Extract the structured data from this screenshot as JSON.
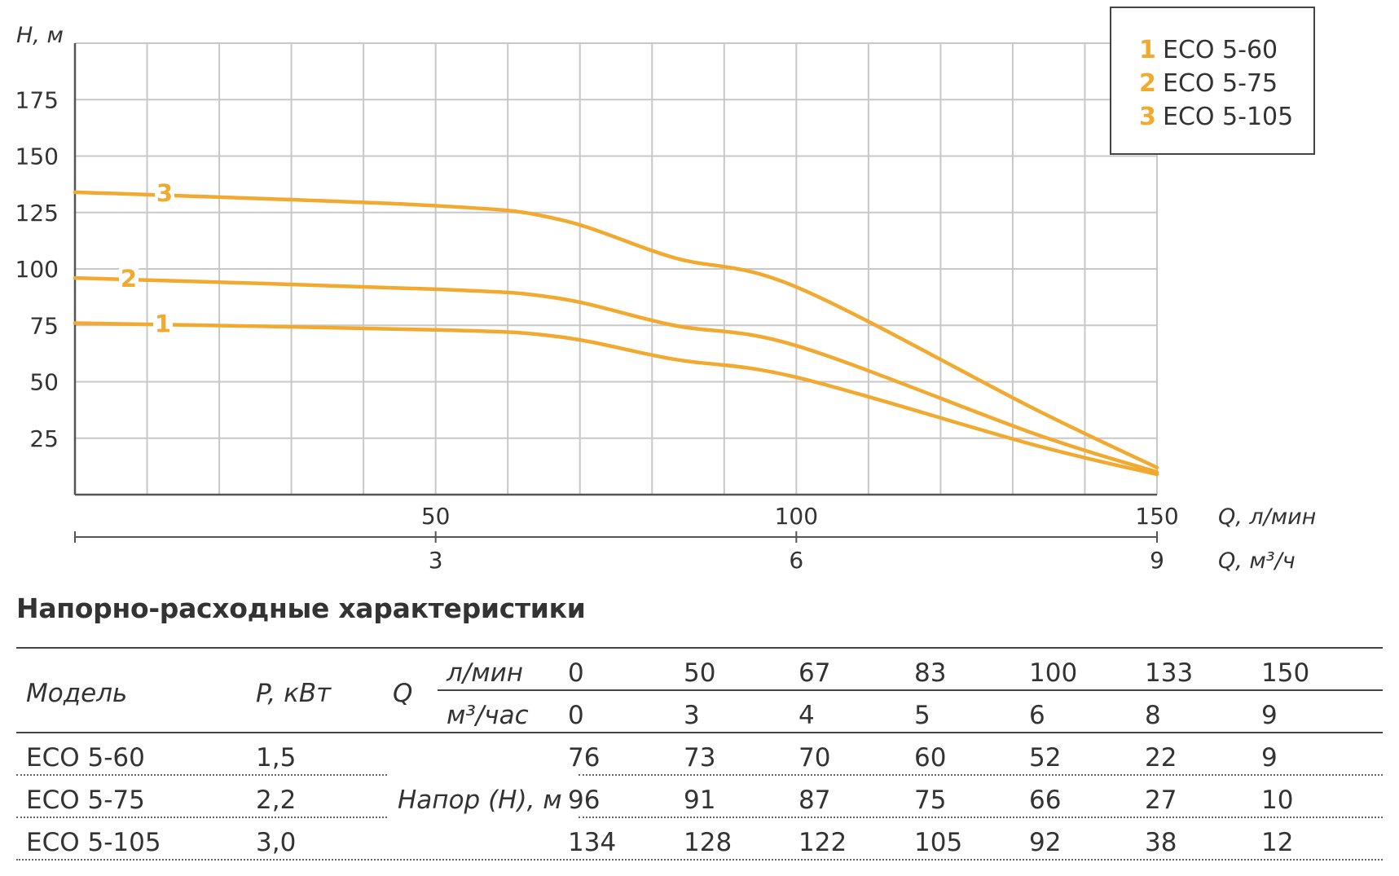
{
  "chart_data": {
    "type": "line",
    "ylabel": "H, м",
    "xlabel": "Q, л/мин",
    "xlabel2": "Q, м³/ч",
    "xlim": [
      0,
      150
    ],
    "ylim": [
      0,
      200
    ],
    "y_ticks": [
      "25",
      "50",
      "75",
      "100",
      "125",
      "150",
      "175"
    ],
    "x_ticks": [
      "50",
      "100",
      "150"
    ],
    "x2_ticks": [
      "3",
      "6",
      "9"
    ],
    "grid": true,
    "legend_position": "top-right",
    "series": [
      {
        "name": "ECO 5-60",
        "marker": "1",
        "x": [
          0,
          50,
          67,
          83,
          100,
          133,
          150
        ],
        "y": [
          76,
          73,
          70,
          60,
          52,
          22,
          9
        ]
      },
      {
        "name": "ECO 5-75",
        "marker": "2",
        "x": [
          0,
          50,
          67,
          83,
          100,
          133,
          150
        ],
        "y": [
          96,
          91,
          87,
          75,
          66,
          27,
          10
        ]
      },
      {
        "name": "ECO 5-105",
        "marker": "3",
        "x": [
          0,
          50,
          67,
          83,
          100,
          133,
          150
        ],
        "y": [
          134,
          128,
          122,
          105,
          92,
          38,
          12
        ]
      }
    ],
    "colors": {
      "curve": "#F2A92F",
      "grid": "#C8C8C8",
      "axis": "#555555"
    }
  },
  "table": {
    "title": "Напорно-расходные характеристики",
    "model_header": "Модель",
    "power_header": "P, кВт",
    "q_header": "Q",
    "q_unit_lmin": "л/мин",
    "q_unit_m3": "м³/час",
    "flow_lmin": [
      "0",
      "50",
      "67",
      "83",
      "100",
      "133",
      "150"
    ],
    "flow_m3": [
      "0",
      "3",
      "4",
      "5",
      "6",
      "8",
      "9"
    ],
    "head_label": "Напор (Н), м",
    "rows": [
      {
        "model": "ECO 5-60",
        "power": "1,5",
        "head": [
          "76",
          "73",
          "70",
          "60",
          "52",
          "22",
          "9"
        ]
      },
      {
        "model": "ECO 5-75",
        "power": "2,2",
        "head": [
          "96",
          "91",
          "87",
          "75",
          "66",
          "27",
          "10"
        ]
      },
      {
        "model": "ECO 5-105",
        "power": "3,0",
        "head": [
          "134",
          "128",
          "122",
          "105",
          "92",
          "38",
          "12"
        ]
      }
    ]
  }
}
